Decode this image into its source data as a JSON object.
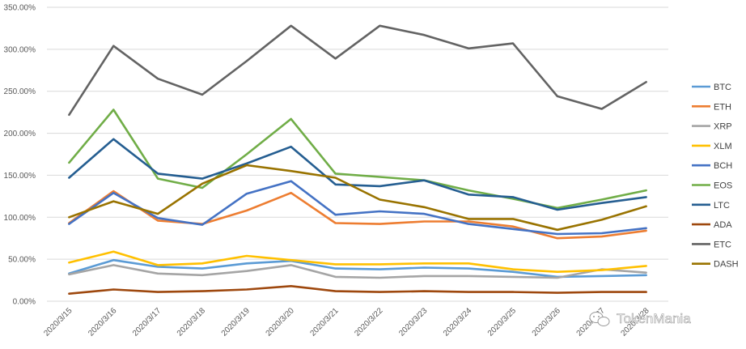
{
  "chart_data": {
    "type": "line",
    "title": "",
    "xlabel": "",
    "ylabel": "",
    "categories": [
      "2020/3/15",
      "2020/3/16",
      "2020/3/17",
      "2020/3/18",
      "2020/3/19",
      "2020/3/20",
      "2020/3/21",
      "2020/3/22",
      "2020/3/23",
      "2020/3/24",
      "2020/3/25",
      "2020/3/26",
      "2020/3/27",
      "2020/3/28"
    ],
    "y_ticks": [
      "0.00%",
      "50.00%",
      "100.00%",
      "150.00%",
      "200.00%",
      "250.00%",
      "300.00%",
      "350.00%"
    ],
    "ylim": [
      0,
      350
    ],
    "grid": "horizontal",
    "legend_position": "right",
    "series": [
      {
        "name": "BTC",
        "color": "#5b9bd5",
        "values": [
          33,
          49,
          41,
          39,
          45,
          48,
          39,
          38,
          40,
          39,
          35,
          29,
          30,
          31
        ]
      },
      {
        "name": "ETH",
        "color": "#ed7d31",
        "values": [
          93,
          131,
          96,
          92,
          108,
          129,
          93,
          92,
          95,
          95,
          89,
          75,
          77,
          84
        ]
      },
      {
        "name": "XRP",
        "color": "#a5a5a5",
        "values": [
          32,
          43,
          33,
          31,
          36,
          43,
          29,
          28,
          30,
          30,
          29,
          28,
          38,
          34
        ]
      },
      {
        "name": "XLM",
        "color": "#ffc000",
        "values": [
          46,
          59,
          43,
          45,
          54,
          49,
          44,
          44,
          45,
          45,
          38,
          35,
          37,
          42
        ]
      },
      {
        "name": "BCH",
        "color": "#4472c4",
        "values": [
          92,
          129,
          99,
          91,
          128,
          143,
          103,
          107,
          104,
          92,
          86,
          80,
          81,
          87
        ]
      },
      {
        "name": "EOS",
        "color": "#70ad47",
        "values": [
          165,
          228,
          146,
          135,
          175,
          217,
          152,
          148,
          144,
          132,
          122,
          111,
          121,
          132
        ]
      },
      {
        "name": "LTC",
        "color": "#255e91",
        "values": [
          147,
          193,
          152,
          146,
          164,
          184,
          139,
          137,
          144,
          127,
          124,
          109,
          117,
          124
        ]
      },
      {
        "name": "ADA",
        "color": "#9e480e",
        "values": [
          9,
          14,
          11,
          12,
          14,
          18,
          12,
          11,
          12,
          11,
          11,
          10,
          11,
          11
        ]
      },
      {
        "name": "ETC",
        "color": "#636363",
        "values": [
          222,
          304,
          265,
          246,
          286,
          328,
          289,
          328,
          317,
          301,
          307,
          244,
          229,
          261
        ]
      },
      {
        "name": "DASH",
        "color": "#997300",
        "values": [
          100,
          119,
          104,
          140,
          162,
          155,
          147,
          121,
          112,
          98,
          98,
          85,
          97,
          113
        ]
      }
    ]
  },
  "watermark": {
    "text": "TokenMania",
    "icon": "wechat-icon"
  }
}
